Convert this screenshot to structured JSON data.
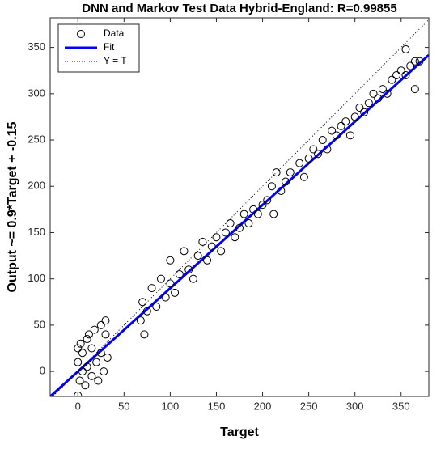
{
  "chart_data": {
    "type": "scatter",
    "title": "DNN and Markov Test Data Hybrid-England: R=0.99855",
    "x_label": "Target",
    "y_label": "Output ~= 0.9*Target + -0.15",
    "xlim": [
      -30,
      380
    ],
    "ylim": [
      -27,
      382
    ],
    "xticks": [
      0,
      50,
      100,
      150,
      200,
      250,
      300,
      350
    ],
    "yticks": [
      0,
      50,
      100,
      150,
      200,
      250,
      300,
      350
    ],
    "grid": false,
    "legend": "upper-left",
    "series": [
      {
        "name": "Data",
        "type": "scatter",
        "color": "#000000",
        "x": [
          0,
          0,
          0,
          2,
          3,
          5,
          5,
          8,
          10,
          10,
          12,
          15,
          15,
          18,
          20,
          22,
          25,
          25,
          28,
          30,
          30,
          32,
          68,
          70,
          72,
          75,
          80,
          85,
          90,
          95,
          100,
          100,
          105,
          110,
          115,
          120,
          125,
          130,
          135,
          140,
          145,
          150,
          155,
          160,
          165,
          170,
          175,
          180,
          185,
          190,
          195,
          200,
          205,
          210,
          212,
          215,
          220,
          225,
          230,
          240,
          245,
          250,
          255,
          260,
          265,
          270,
          275,
          280,
          285,
          290,
          295,
          300,
          305,
          310,
          315,
          320,
          325,
          330,
          335,
          340,
          345,
          350,
          355,
          360,
          365,
          370,
          355,
          365
        ],
        "values": [
          -26,
          10,
          25,
          -10,
          30,
          0,
          20,
          -15,
          35,
          5,
          40,
          -5,
          25,
          45,
          10,
          -10,
          50,
          20,
          0,
          40,
          55,
          15,
          55,
          75,
          40,
          65,
          90,
          70,
          100,
          80,
          95,
          120,
          85,
          105,
          130,
          110,
          100,
          125,
          140,
          120,
          135,
          145,
          130,
          150,
          160,
          145,
          155,
          170,
          160,
          175,
          170,
          180,
          185,
          200,
          170,
          215,
          195,
          205,
          215,
          225,
          210,
          230,
          240,
          235,
          250,
          240,
          260,
          255,
          265,
          270,
          255,
          275,
          285,
          280,
          290,
          300,
          295,
          305,
          300,
          315,
          320,
          325,
          320,
          330,
          335,
          335,
          348,
          305
        ]
      },
      {
        "name": "Fit",
        "type": "line",
        "color": "#0000ff",
        "x": [
          -30,
          380
        ],
        "values": [
          -27.15,
          341.85
        ]
      },
      {
        "name": "Y = T",
        "type": "dotted",
        "color": "#000000",
        "x": [
          -30,
          380
        ],
        "values": [
          -30,
          380
        ]
      }
    ]
  }
}
